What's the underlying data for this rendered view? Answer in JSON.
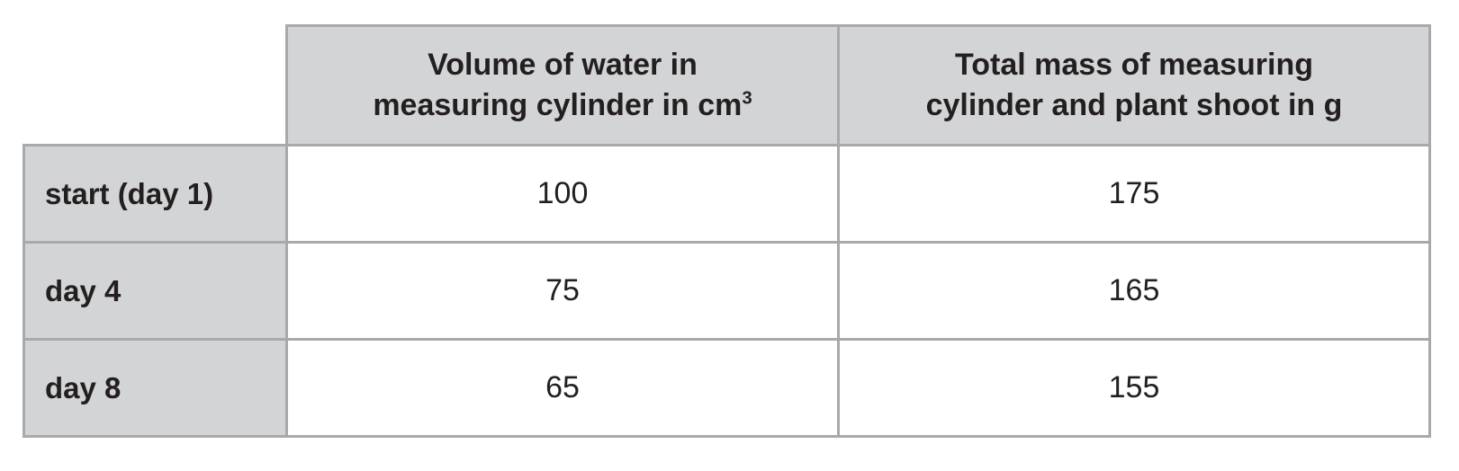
{
  "table": {
    "corner_label": "",
    "headers": {
      "volume": {
        "line1": "Volume of water in",
        "line2": "measuring cylinder in cm",
        "superscript": "3"
      },
      "mass": {
        "line1": "Total mass of measuring",
        "line2": "cylinder and plant shoot in g"
      }
    },
    "rows": [
      {
        "label": "start (day 1)",
        "volume": "100",
        "mass": "175"
      },
      {
        "label": "day 4",
        "volume": "75",
        "mass": "165"
      },
      {
        "label": "day 8",
        "volume": "65",
        "mass": "155"
      }
    ]
  },
  "colors": {
    "cell_gray": "#d3d4d6",
    "border_gray": "#a7a9ac",
    "text": "#231f20",
    "data_cell_bg": "#ffffff"
  },
  "chart_data": {
    "type": "table",
    "title": "",
    "categories": [
      "start (day 1)",
      "day 4",
      "day 8"
    ],
    "series": [
      {
        "name": "Volume of water in measuring cylinder in cm³",
        "values": [
          100,
          75,
          65
        ]
      },
      {
        "name": "Total mass of measuring cylinder and plant shoot in g",
        "values": [
          175,
          165,
          155
        ]
      }
    ]
  }
}
